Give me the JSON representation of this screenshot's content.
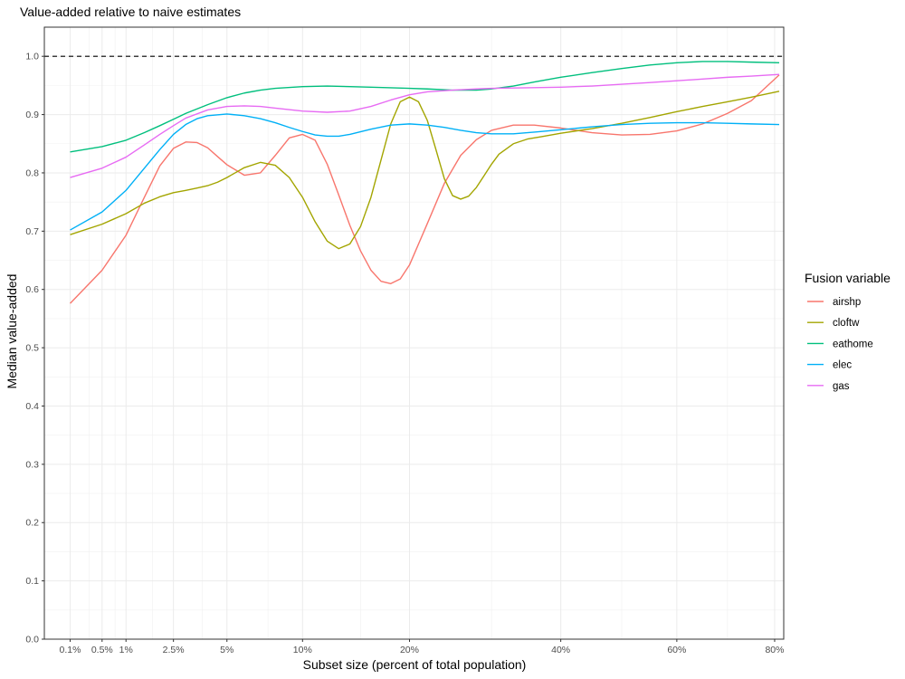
{
  "chart_data": {
    "type": "line",
    "title": "Value-added relative to naive estimates",
    "xlabel": "Subset size (percent of total population)",
    "ylabel": "Median value-added",
    "x_scale": "sqrt",
    "xlim": [
      0,
      82
    ],
    "ylim": [
      0,
      1.05
    ],
    "x_ticks": [
      0.1,
      0.5,
      1,
      2.5,
      5,
      10,
      20,
      40,
      60,
      80
    ],
    "x_tick_labels": [
      "0.1%",
      "0.5%",
      "1%",
      "2.5%",
      "5%",
      "10%",
      "20%",
      "40%",
      "60%",
      "80%"
    ],
    "y_ticks": [
      0,
      0.1,
      0.2,
      0.3,
      0.4,
      0.5,
      0.6,
      0.7,
      0.8,
      0.9,
      1.0
    ],
    "y_tick_labels": [
      "0.0",
      "0.1",
      "0.2",
      "0.3",
      "0.4",
      "0.5",
      "0.6",
      "0.7",
      "0.8",
      "0.9",
      "1.0"
    ],
    "reference_line": {
      "y": 1.0,
      "style": "dashed"
    },
    "grid": true,
    "legend": {
      "title": "Fusion variable",
      "position": "right"
    },
    "series": [
      {
        "name": "airshp",
        "color": "#F8766D",
        "x": [
          0.1,
          0.5,
          1,
          1.5,
          2,
          2.5,
          3,
          3.5,
          4,
          4.5,
          5,
          6,
          7,
          8,
          9,
          10,
          11,
          12,
          13,
          14,
          15,
          16,
          17,
          18,
          19,
          20,
          22,
          24,
          26,
          28,
          30,
          33,
          36,
          40,
          45,
          50,
          55,
          60,
          65,
          70,
          75,
          81
        ],
        "y": [
          0.576,
          0.633,
          0.693,
          0.758,
          0.812,
          0.842,
          0.853,
          0.852,
          0.843,
          0.828,
          0.814,
          0.796,
          0.8,
          0.83,
          0.86,
          0.866,
          0.856,
          0.815,
          0.762,
          0.71,
          0.666,
          0.633,
          0.614,
          0.61,
          0.618,
          0.642,
          0.713,
          0.782,
          0.83,
          0.857,
          0.873,
          0.882,
          0.882,
          0.877,
          0.869,
          0.865,
          0.866,
          0.872,
          0.884,
          0.902,
          0.924,
          0.968
        ]
      },
      {
        "name": "cloftw",
        "color": "#A3A500",
        "x": [
          0.1,
          0.5,
          1,
          1.5,
          2,
          2.5,
          3,
          3.5,
          4,
          4.5,
          5,
          6,
          7,
          8,
          9,
          10,
          11,
          12,
          13,
          14,
          15,
          16,
          17,
          18,
          19,
          20,
          21,
          22,
          23,
          24,
          25,
          26,
          27,
          28,
          29,
          30,
          31,
          33,
          35,
          37,
          40,
          45,
          50,
          55,
          60,
          65,
          70,
          75,
          81
        ],
        "y": [
          0.694,
          0.712,
          0.73,
          0.748,
          0.759,
          0.766,
          0.77,
          0.774,
          0.778,
          0.784,
          0.792,
          0.809,
          0.818,
          0.813,
          0.792,
          0.758,
          0.716,
          0.683,
          0.67,
          0.678,
          0.708,
          0.758,
          0.822,
          0.884,
          0.922,
          0.93,
          0.922,
          0.89,
          0.84,
          0.79,
          0.761,
          0.755,
          0.76,
          0.775,
          0.795,
          0.815,
          0.832,
          0.85,
          0.858,
          0.862,
          0.868,
          0.876,
          0.885,
          0.895,
          0.905,
          0.914,
          0.922,
          0.93,
          0.94
        ]
      },
      {
        "name": "eathome",
        "color": "#00BF7D",
        "x": [
          0.1,
          0.5,
          1,
          1.5,
          2,
          2.5,
          3,
          4,
          5,
          6,
          7,
          8,
          10,
          12,
          14,
          16,
          18,
          20,
          22,
          25,
          28,
          30,
          33,
          36,
          40,
          45,
          50,
          55,
          60,
          65,
          70,
          75,
          81
        ],
        "y": [
          0.836,
          0.845,
          0.856,
          0.869,
          0.881,
          0.892,
          0.902,
          0.917,
          0.929,
          0.937,
          0.942,
          0.945,
          0.948,
          0.949,
          0.948,
          0.947,
          0.946,
          0.945,
          0.944,
          0.942,
          0.942,
          0.944,
          0.949,
          0.956,
          0.964,
          0.972,
          0.979,
          0.985,
          0.989,
          0.991,
          0.991,
          0.99,
          0.989
        ]
      },
      {
        "name": "elec",
        "color": "#00B0F6",
        "x": [
          0.1,
          0.5,
          1,
          1.5,
          2,
          2.5,
          3,
          3.5,
          4,
          5,
          6,
          7,
          8,
          9,
          10,
          11,
          12,
          13,
          14,
          16,
          18,
          20,
          22,
          24,
          26,
          28,
          30,
          33,
          36,
          40,
          45,
          50,
          55,
          60,
          65,
          70,
          75,
          81
        ],
        "y": [
          0.702,
          0.733,
          0.77,
          0.808,
          0.84,
          0.866,
          0.883,
          0.893,
          0.898,
          0.901,
          0.898,
          0.893,
          0.886,
          0.878,
          0.871,
          0.865,
          0.863,
          0.863,
          0.866,
          0.875,
          0.882,
          0.884,
          0.882,
          0.878,
          0.873,
          0.869,
          0.867,
          0.867,
          0.87,
          0.874,
          0.879,
          0.883,
          0.885,
          0.886,
          0.886,
          0.885,
          0.884,
          0.883
        ]
      },
      {
        "name": "gas",
        "color": "#E76BF3",
        "x": [
          0.1,
          0.5,
          1,
          1.5,
          2,
          2.5,
          3,
          4,
          5,
          6,
          7,
          8,
          10,
          12,
          14,
          16,
          18,
          20,
          22,
          25,
          28,
          30,
          35,
          40,
          45,
          50,
          55,
          60,
          65,
          70,
          75,
          81
        ],
        "y": [
          0.792,
          0.808,
          0.827,
          0.848,
          0.866,
          0.881,
          0.894,
          0.908,
          0.914,
          0.915,
          0.914,
          0.911,
          0.906,
          0.904,
          0.906,
          0.914,
          0.925,
          0.934,
          0.939,
          0.942,
          0.944,
          0.945,
          0.946,
          0.947,
          0.949,
          0.952,
          0.955,
          0.958,
          0.961,
          0.964,
          0.966,
          0.969
        ]
      }
    ]
  }
}
